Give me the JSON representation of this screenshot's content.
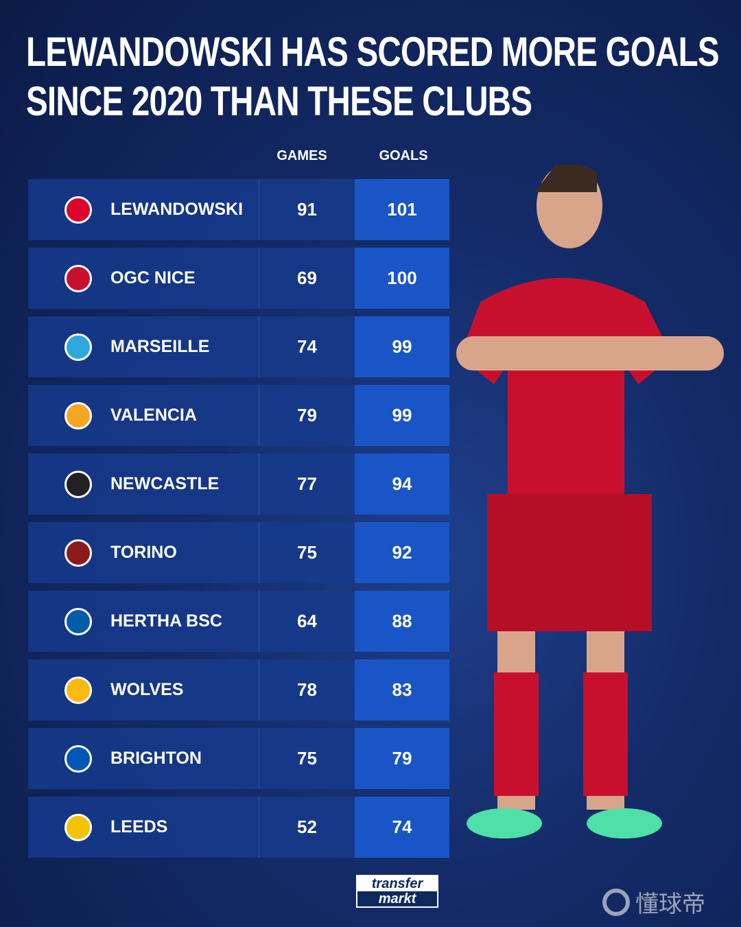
{
  "title": "Lewandowski has scored more goals since 2020 than these clubs",
  "title_lines": [
    "LEWANDOWSKI HAS SCORED MORE GOALS",
    "SINCE 2020 THAN THESE CLUBS"
  ],
  "chart_data": {
    "type": "table",
    "title": "LEWANDOWSKI HAS SCORED MORE GOALS SINCE 2020 THAN THESE CLUBS",
    "columns": [
      "GAMES",
      "GOALS"
    ],
    "rows": [
      {
        "name": "LEWANDOWSKI",
        "games": 91,
        "goals": 101,
        "color": "#dc052d"
      },
      {
        "name": "OGC NICE",
        "games": 69,
        "goals": 100,
        "color": "#c8102e"
      },
      {
        "name": "MARSEILLE",
        "games": 74,
        "goals": 99,
        "color": "#2fa8de"
      },
      {
        "name": "VALENCIA",
        "games": 79,
        "goals": 99,
        "color": "#f5a623"
      },
      {
        "name": "NEWCASTLE",
        "games": 77,
        "goals": 94,
        "color": "#222222"
      },
      {
        "name": "TORINO",
        "games": 75,
        "goals": 92,
        "color": "#8b1a1a"
      },
      {
        "name": "HERTHA BSC",
        "games": 64,
        "goals": 88,
        "color": "#005ca9"
      },
      {
        "name": "WOLVES",
        "games": 78,
        "goals": 83,
        "color": "#fdb913"
      },
      {
        "name": "BRIGHTON",
        "games": 75,
        "goals": 79,
        "color": "#0057b8"
      },
      {
        "name": "LEEDS",
        "games": 52,
        "goals": 74,
        "color": "#f2c500"
      }
    ]
  },
  "footer": {
    "logo_top": "transfer",
    "logo_bottom": "markt",
    "watermark": "懂球帝"
  }
}
